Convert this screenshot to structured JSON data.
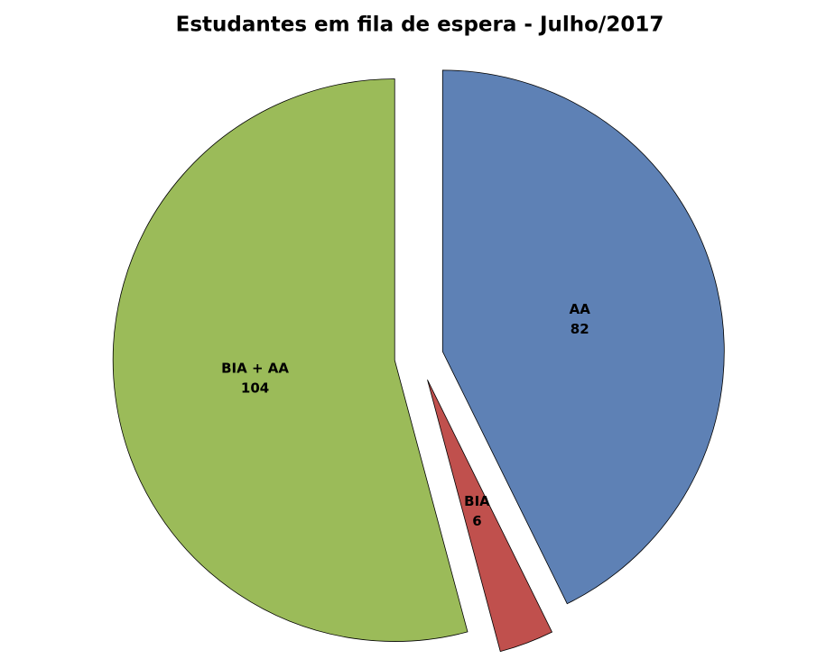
{
  "chart_data": {
    "type": "pie",
    "title": "Estudantes em fila de espera - Julho/2017",
    "categories": [
      "AA",
      "BIA",
      "BIA + AA"
    ],
    "values": [
      82,
      6,
      104
    ],
    "colors": [
      "#5e81b5",
      "#c0504d",
      "#9bbb59"
    ],
    "exploded": true
  }
}
